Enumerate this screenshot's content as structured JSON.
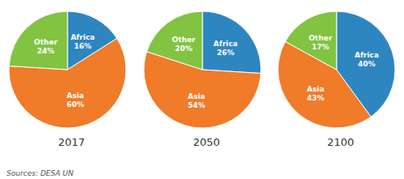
{
  "chart_data": [
    {
      "type": "pie",
      "title": "2017",
      "categories": [
        "Africa",
        "Asia",
        "Other"
      ],
      "values": [
        16,
        60,
        24
      ],
      "value_labels": [
        "16%",
        "60%",
        "24%"
      ],
      "colors": [
        "#2E86C1",
        "#F07B29",
        "#82C341"
      ],
      "data_labels": true,
      "annotations": [
        "Sources: DESA UN"
      ]
    },
    {
      "type": "pie",
      "title": "2050",
      "categories": [
        "Africa",
        "Asia",
        "Other"
      ],
      "values": [
        26,
        54,
        20
      ],
      "value_labels": [
        "26%",
        "54%",
        "20%"
      ],
      "colors": [
        "#2E86C1",
        "#F07B29",
        "#82C341"
      ],
      "data_labels": true
    },
    {
      "type": "pie",
      "title": "2100",
      "categories": [
        "Africa",
        "Asia",
        "Other"
      ],
      "values": [
        40,
        43,
        17
      ],
      "value_labels": [
        "40%",
        "43%",
        "17%"
      ],
      "colors": [
        "#2E86C1",
        "#F07B29",
        "#82C341"
      ],
      "data_labels": true
    }
  ]
}
